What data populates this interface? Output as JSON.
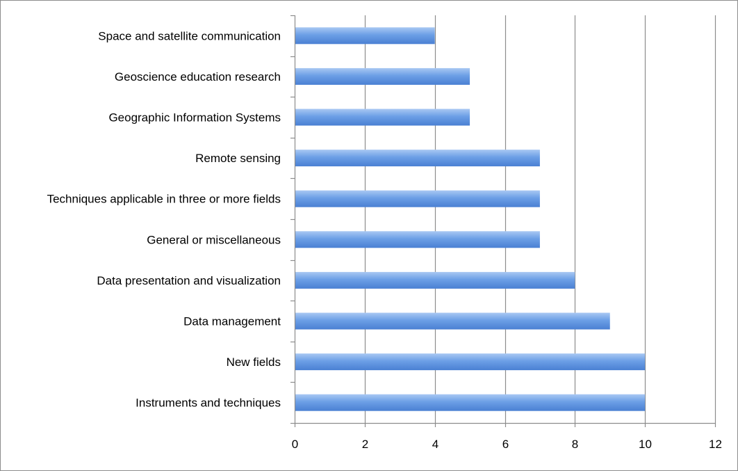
{
  "chart_data": {
    "type": "bar",
    "orientation": "horizontal",
    "title": "",
    "xlabel": "",
    "ylabel": "",
    "categories": [
      "Space and satellite communication",
      "Geoscience education research",
      "Geographic Information Systems",
      "Remote sensing",
      "Techniques applicable in three or more fields",
      "General or miscellaneous",
      "Data presentation and visualization",
      "Data management",
      "New fields",
      "Instruments and techniques"
    ],
    "values": [
      4,
      5,
      5,
      7,
      7,
      7,
      8,
      9,
      10,
      10
    ],
    "xlim": [
      0,
      12
    ],
    "x_ticks": [
      "0",
      "2",
      "4",
      "6",
      "8",
      "10",
      "12"
    ],
    "grid": "vertical",
    "legend": "none",
    "colors": {
      "bar_light": "#a9c8f3",
      "bar_mid": "#6c9fe6",
      "bar_dark": "#4a80d3",
      "gridline": "#8c8c8c",
      "axis": "#8c8c8c"
    }
  }
}
